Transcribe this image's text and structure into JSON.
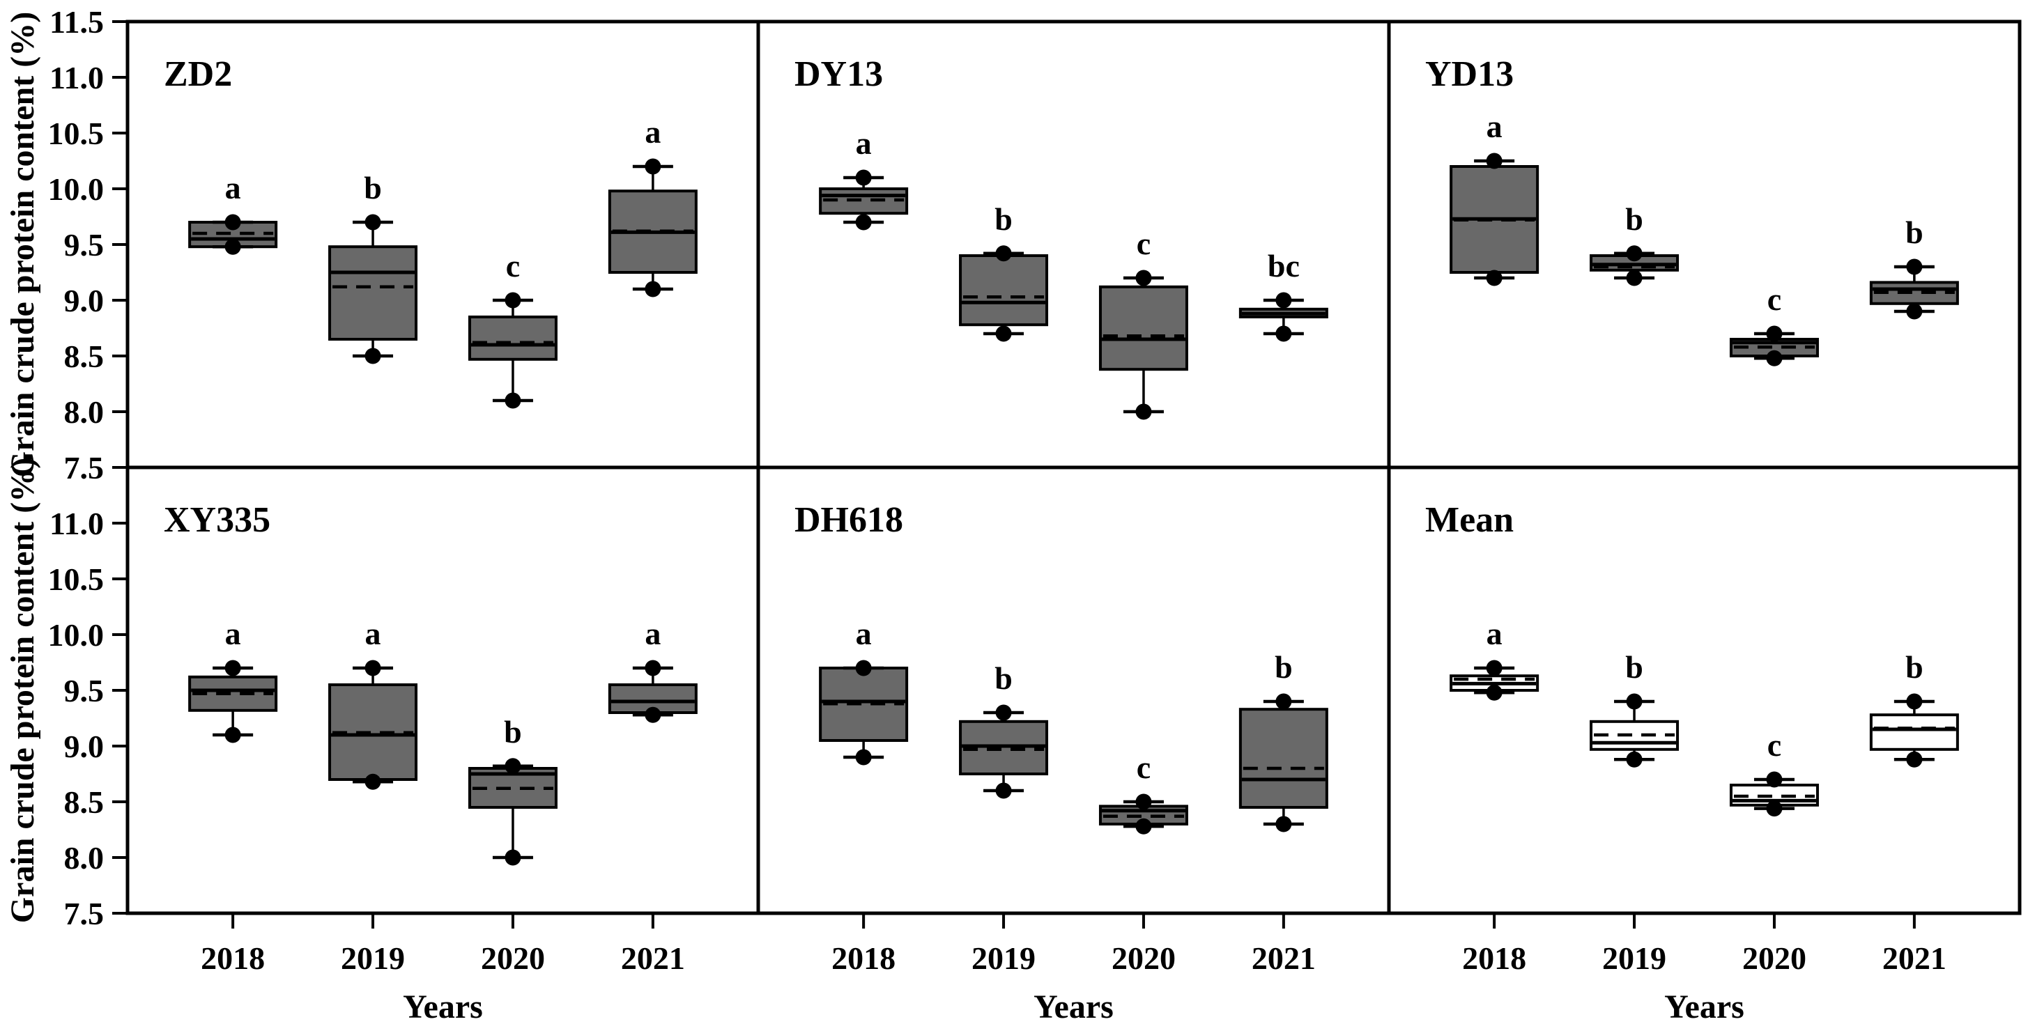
{
  "figure": {
    "ylabel": "Grain crude protein content  (%)",
    "xlabel": "Years"
  },
  "chart_data": {
    "type": "boxplot",
    "grid_rows": 2,
    "grid_cols": 3,
    "ylim": [
      7.5,
      11.5
    ],
    "ytick_step": 0.5,
    "yticks": [
      11.5,
      11.0,
      10.5,
      10.0,
      9.5,
      9.0,
      8.5,
      8.0,
      7.5
    ],
    "categories": [
      "2018",
      "2019",
      "2020",
      "2021"
    ],
    "ylabel": "Grain crude protein content  (%)",
    "xlabel": "Years",
    "legend": "none",
    "grid_lines": "off",
    "box_fill_default": "#696969",
    "panels": [
      {
        "title": "ZD2",
        "fill": "#696969",
        "boxes": [
          {
            "category": "2018",
            "letter": "a",
            "q1": 9.48,
            "median": 9.55,
            "mean": 9.6,
            "q3": 9.7,
            "low": 9.48,
            "high": 9.7
          },
          {
            "category": "2019",
            "letter": "b",
            "q1": 8.65,
            "median": 9.25,
            "mean": 9.12,
            "q3": 9.48,
            "low": 8.5,
            "high": 9.7
          },
          {
            "category": "2020",
            "letter": "c",
            "q1": 8.47,
            "median": 8.6,
            "mean": 8.62,
            "q3": 8.85,
            "low": 8.1,
            "high": 9.0
          },
          {
            "category": "2021",
            "letter": "a",
            "q1": 9.25,
            "median": 9.61,
            "mean": 9.62,
            "q3": 9.98,
            "low": 9.1,
            "high": 10.2
          }
        ]
      },
      {
        "title": "DY13",
        "fill": "#696969",
        "boxes": [
          {
            "category": "2018",
            "letter": "a",
            "q1": 9.78,
            "median": 9.94,
            "mean": 9.9,
            "q3": 10.0,
            "low": 9.7,
            "high": 10.1
          },
          {
            "category": "2019",
            "letter": "b",
            "q1": 8.78,
            "median": 8.98,
            "mean": 9.03,
            "q3": 9.4,
            "low": 8.7,
            "high": 9.42
          },
          {
            "category": "2020",
            "letter": "c",
            "q1": 8.38,
            "median": 8.65,
            "mean": 8.68,
            "q3": 9.12,
            "low": 8.0,
            "high": 9.2
          },
          {
            "category": "2021",
            "letter": "bc",
            "q1": 8.85,
            "median": 8.88,
            "mean": 8.88,
            "q3": 8.92,
            "low": 8.7,
            "high": 9.0
          }
        ]
      },
      {
        "title": "YD13",
        "fill": "#696969",
        "boxes": [
          {
            "category": "2018",
            "letter": "a",
            "q1": 9.25,
            "median": 9.73,
            "mean": 9.72,
            "q3": 10.2,
            "low": 9.2,
            "high": 10.25
          },
          {
            "category": "2019",
            "letter": "b",
            "q1": 9.27,
            "median": 9.32,
            "mean": 9.3,
            "q3": 9.4,
            "low": 9.2,
            "high": 9.42
          },
          {
            "category": "2020",
            "letter": "c",
            "q1": 8.5,
            "median": 8.62,
            "mean": 8.58,
            "q3": 8.65,
            "low": 8.48,
            "high": 8.7
          },
          {
            "category": "2021",
            "letter": "b",
            "q1": 8.97,
            "median": 9.1,
            "mean": 9.07,
            "q3": 9.16,
            "low": 8.9,
            "high": 9.3
          }
        ]
      },
      {
        "title": "XY335",
        "fill": "#696969",
        "boxes": [
          {
            "category": "2018",
            "letter": "a",
            "q1": 9.32,
            "median": 9.5,
            "mean": 9.47,
            "q3": 9.62,
            "low": 9.1,
            "high": 9.7
          },
          {
            "category": "2019",
            "letter": "a",
            "q1": 8.7,
            "median": 9.1,
            "mean": 9.12,
            "q3": 9.55,
            "low": 8.68,
            "high": 9.7
          },
          {
            "category": "2020",
            "letter": "b",
            "q1": 8.45,
            "median": 8.75,
            "mean": 8.62,
            "q3": 8.8,
            "low": 8.0,
            "high": 8.82
          },
          {
            "category": "2021",
            "letter": "a",
            "q1": 9.3,
            "median": 9.4,
            "mean": 9.4,
            "q3": 9.55,
            "low": 9.28,
            "high": 9.7
          }
        ]
      },
      {
        "title": "DH618",
        "fill": "#696969",
        "boxes": [
          {
            "category": "2018",
            "letter": "a",
            "q1": 9.05,
            "median": 9.4,
            "mean": 9.38,
            "q3": 9.7,
            "low": 8.9,
            "high": 9.7
          },
          {
            "category": "2019",
            "letter": "b",
            "q1": 8.75,
            "median": 9.0,
            "mean": 8.97,
            "q3": 9.22,
            "low": 8.6,
            "high": 9.3
          },
          {
            "category": "2020",
            "letter": "c",
            "q1": 8.3,
            "median": 8.42,
            "mean": 8.37,
            "q3": 8.46,
            "low": 8.28,
            "high": 8.5
          },
          {
            "category": "2021",
            "letter": "b",
            "q1": 8.45,
            "median": 8.7,
            "mean": 8.8,
            "q3": 9.33,
            "low": 8.3,
            "high": 9.4
          }
        ]
      },
      {
        "title": "Mean",
        "fill": "#ffffff",
        "boxes": [
          {
            "category": "2018",
            "letter": "a",
            "q1": 9.5,
            "median": 9.56,
            "mean": 9.6,
            "q3": 9.63,
            "low": 9.48,
            "high": 9.7
          },
          {
            "category": "2019",
            "letter": "b",
            "q1": 8.97,
            "median": 9.03,
            "mean": 9.1,
            "q3": 9.22,
            "low": 8.88,
            "high": 9.4
          },
          {
            "category": "2020",
            "letter": "c",
            "q1": 8.47,
            "median": 8.51,
            "mean": 8.55,
            "q3": 8.65,
            "low": 8.44,
            "high": 8.7
          },
          {
            "category": "2021",
            "letter": "b",
            "q1": 8.97,
            "median": 9.15,
            "mean": 9.16,
            "q3": 9.28,
            "low": 8.88,
            "high": 9.4
          }
        ]
      }
    ]
  }
}
